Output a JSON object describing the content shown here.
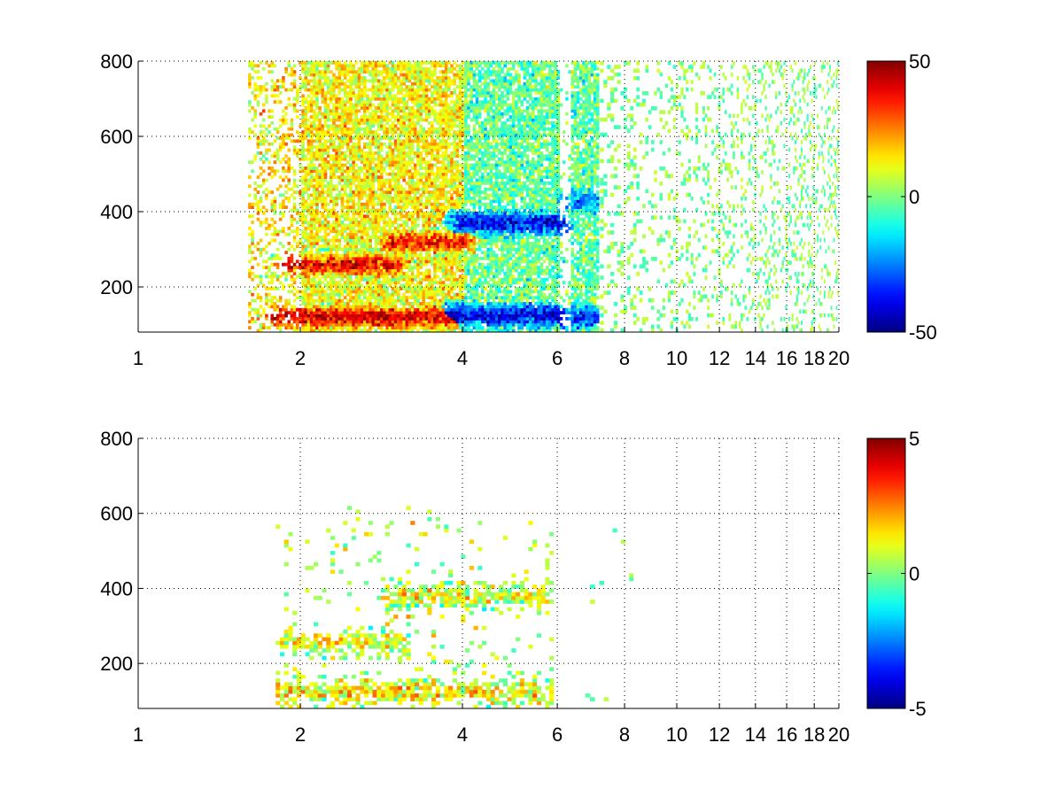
{
  "chart_data": [
    {
      "type": "heatmap",
      "title": "",
      "xlabel": "",
      "ylabel": "",
      "xscale": "log",
      "xlim": [
        1,
        20
      ],
      "ylim": [
        80,
        800
      ],
      "x_ticks": [
        1,
        2,
        4,
        6,
        8,
        10,
        12,
        14,
        16,
        18,
        20
      ],
      "y_ticks": [
        200,
        400,
        600,
        800
      ],
      "grid": true,
      "colormap": "jet",
      "colorbar": {
        "min": -50,
        "max": 50,
        "ticks": [
          50,
          0,
          -50
        ]
      },
      "dense_region": {
        "x": [
          1.6,
          7.2
        ],
        "y": [
          80,
          800
        ]
      },
      "sparse_region": {
        "x": [
          7.2,
          20
        ],
        "y": [
          80,
          800
        ]
      },
      "features": [
        {
          "x": [
            1.8,
            3.8
          ],
          "y": 120,
          "value": 42
        },
        {
          "x": [
            3.8,
            6.0
          ],
          "y": 125,
          "value": -40
        },
        {
          "x": [
            6.4,
            7.2
          ],
          "y": 120,
          "value": -35
        },
        {
          "x": [
            1.9,
            3.0
          ],
          "y": 260,
          "value": 38
        },
        {
          "x": [
            3.0,
            4.0
          ],
          "y": 320,
          "value": 35
        },
        {
          "x": [
            4.0,
            6.0
          ],
          "y": 370,
          "value": -38
        },
        {
          "x": [
            6.3,
            7.2
          ],
          "y": 430,
          "value": -22
        }
      ]
    },
    {
      "type": "heatmap",
      "title": "",
      "xlabel": "",
      "ylabel": "",
      "xscale": "log",
      "xlim": [
        1,
        20
      ],
      "ylim": [
        80,
        800
      ],
      "x_ticks": [
        1,
        2,
        4,
        6,
        8,
        10,
        12,
        14,
        16,
        18,
        20
      ],
      "y_ticks": [
        200,
        400,
        600,
        800
      ],
      "grid": true,
      "colormap": "jet",
      "colorbar": {
        "min": -5,
        "max": 5,
        "ticks": [
          5,
          0,
          -5
        ]
      },
      "dense_region": {
        "x": [
          1.8,
          6.0
        ],
        "y": [
          80,
          620
        ]
      },
      "sparse_region": {
        "x": [
          6.2,
          8.3
        ],
        "y": [
          80,
          650
        ]
      },
      "features": [
        {
          "x": [
            1.9,
            6.0
          ],
          "y": 125,
          "value": 1.5
        },
        {
          "x": [
            1.9,
            3.0
          ],
          "y": 255,
          "value": 1.2
        },
        {
          "x": [
            3.0,
            6.0
          ],
          "y": 380,
          "value": 1.0
        },
        {
          "x": [
            6.3,
            7.2
          ],
          "y": 480,
          "value": 0.5
        }
      ]
    }
  ]
}
